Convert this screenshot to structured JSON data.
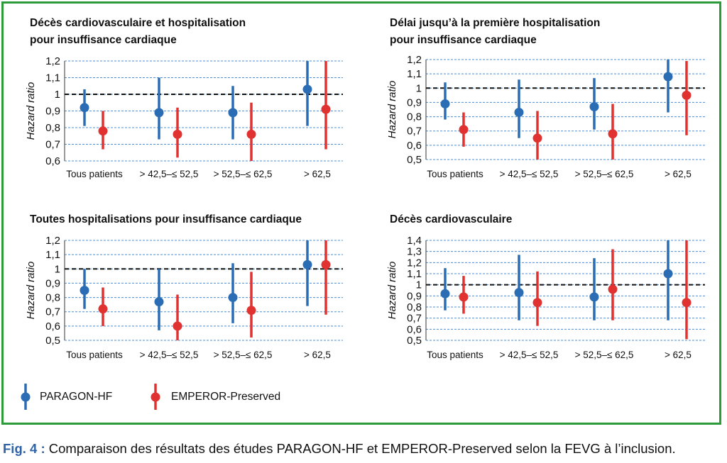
{
  "colors": {
    "series_a": "#2a6db5",
    "series_b": "#e03231",
    "frame": "#2e9b3a",
    "grid": "#4a8fd6",
    "caption_label": "#2f63a8"
  },
  "y_axis_label": "Hazard ratio",
  "legend": [
    {
      "name": "PARAGON-HF",
      "color": "#2a6db5"
    },
    {
      "name": "EMPEROR-Preserved",
      "color": "#e03231"
    }
  ],
  "caption": {
    "label": "Fig. 4 :",
    "text": "Comparaison des résultats des études PARAGON-HF et EMPEROR-Preserved selon la FEVG à l’inclusion."
  },
  "chart_data": [
    {
      "type": "errorbar",
      "title": [
        "Décès cardiovasculaire et hospitalisation",
        "pour insuffisance cardiaque"
      ],
      "ylabel": "Hazard ratio",
      "ylim": [
        0.6,
        1.2
      ],
      "yticks": [
        "0,6",
        "0,7",
        "0,8",
        "0,9",
        "1",
        "1,1",
        "1,2"
      ],
      "reference_line": 1,
      "grid": true,
      "categories": [
        "Tous patients",
        "> 42,5–≤ 52,5",
        "> 52,5–≤ 62,5",
        "> 62,5"
      ],
      "series": [
        {
          "name": "PARAGON-HF",
          "estimates": [
            0.92,
            0.89,
            0.89,
            1.03
          ],
          "lower": [
            0.81,
            0.73,
            0.73,
            0.81
          ],
          "upper": [
            1.03,
            1.1,
            1.05,
            1.2
          ]
        },
        {
          "name": "EMPEROR-Preserved",
          "estimates": [
            0.78,
            0.76,
            0.76,
            0.91
          ],
          "lower": [
            0.67,
            0.62,
            0.6,
            0.67
          ],
          "upper": [
            0.9,
            0.92,
            0.95,
            1.2
          ]
        }
      ]
    },
    {
      "type": "errorbar",
      "title": [
        "Délai jusqu’à la première hospitalisation",
        "pour insuffisance cardiaque"
      ],
      "ylabel": "Hazard ratio",
      "ylim": [
        0.5,
        1.2
      ],
      "yticks": [
        "0,5",
        "0,6",
        "0,7",
        "0,8",
        "0,9",
        "1",
        "1,1",
        "1,2"
      ],
      "reference_line": 1,
      "grid": true,
      "categories": [
        "Tous patients",
        "> 42,5–≤ 52,5",
        "> 52,5–≤ 62,5",
        "> 62,5"
      ],
      "series": [
        {
          "name": "PARAGON-HF",
          "estimates": [
            0.89,
            0.83,
            0.87,
            1.08
          ],
          "lower": [
            0.78,
            0.65,
            0.71,
            0.83
          ],
          "upper": [
            1.04,
            1.06,
            1.07,
            1.2
          ]
        },
        {
          "name": "EMPEROR-Preserved",
          "estimates": [
            0.71,
            0.65,
            0.68,
            0.95
          ],
          "lower": [
            0.59,
            0.5,
            0.5,
            0.67
          ],
          "upper": [
            0.83,
            0.84,
            0.89,
            1.19
          ]
        }
      ]
    },
    {
      "type": "errorbar",
      "title": [
        "Toutes hospitalisations pour insuffisance cardiaque"
      ],
      "ylabel": "Hazard ratio",
      "ylim": [
        0.5,
        1.2
      ],
      "yticks": [
        "0,5",
        "0,6",
        "0,7",
        "0,8",
        "0,9",
        "1",
        "1,1",
        "1,2"
      ],
      "reference_line": 1,
      "grid": true,
      "categories": [
        "Tous patients",
        "> 42,5–≤ 52,5",
        "> 52,5–≤ 62,5",
        "> 62,5"
      ],
      "series": [
        {
          "name": "PARAGON-HF",
          "estimates": [
            0.85,
            0.77,
            0.8,
            1.03
          ],
          "lower": [
            0.72,
            0.57,
            0.62,
            0.74
          ],
          "upper": [
            1.0,
            1.0,
            1.04,
            1.2
          ]
        },
        {
          "name": "EMPEROR-Preserved",
          "estimates": [
            0.72,
            0.6,
            0.71,
            1.03
          ],
          "lower": [
            0.6,
            0.5,
            0.52,
            0.68
          ],
          "upper": [
            0.87,
            0.82,
            0.98,
            1.2
          ]
        }
      ]
    },
    {
      "type": "errorbar",
      "title": [
        "Décès cardiovasculaire"
      ],
      "ylabel": "Hazard ratio",
      "ylim": [
        0.5,
        1.4
      ],
      "yticks": [
        "0,5",
        "0,6",
        "0,7",
        "0,8",
        "0,9",
        "1",
        "1,1",
        "1,2",
        "1,3",
        "1,4"
      ],
      "reference_line": 1,
      "grid": true,
      "categories": [
        "Tous patients",
        "> 42,5–≤ 52,5",
        "> 52,5–≤ 62,5",
        "> 62,5"
      ],
      "series": [
        {
          "name": "PARAGON-HF",
          "estimates": [
            0.92,
            0.93,
            0.89,
            1.1
          ],
          "lower": [
            0.77,
            0.68,
            0.68,
            0.68
          ],
          "upper": [
            1.15,
            1.27,
            1.24,
            1.4
          ]
        },
        {
          "name": "EMPEROR-Preserved",
          "estimates": [
            0.89,
            0.84,
            0.96,
            0.84
          ],
          "lower": [
            0.74,
            0.63,
            0.68,
            0.51
          ],
          "upper": [
            1.08,
            1.12,
            1.32,
            1.4
          ]
        }
      ]
    }
  ]
}
